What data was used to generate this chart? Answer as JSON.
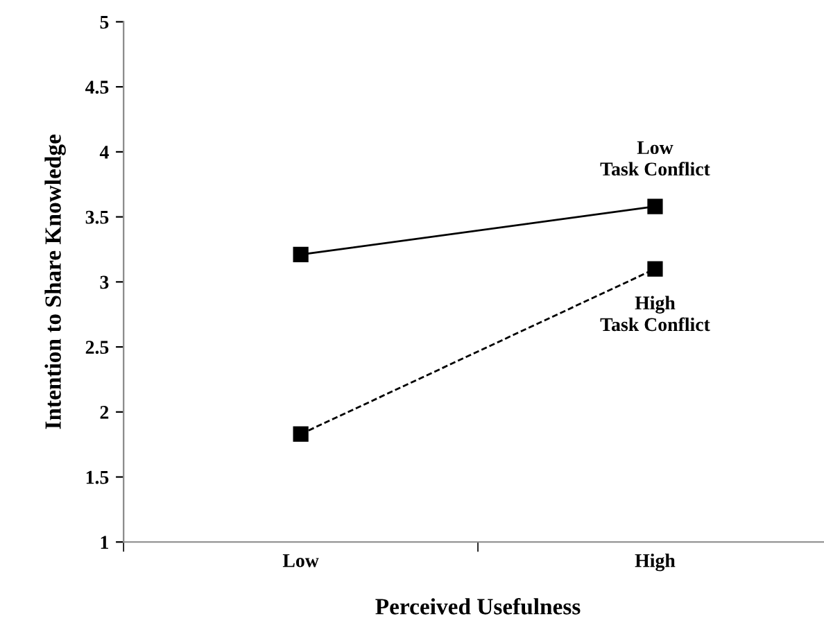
{
  "chart_data": {
    "type": "line",
    "xlabel": "Perceived Usefulness",
    "ylabel": "Intention to Share Knowledge",
    "categories": [
      "Low",
      "High"
    ],
    "series": [
      {
        "name": "Low\nTask Conflict",
        "color": "#000000",
        "values": [
          3.21,
          3.58
        ],
        "line_style": "solid"
      },
      {
        "name": "High\nTask Conflict",
        "color": "#000000",
        "values": [
          1.83,
          3.1
        ],
        "line_style": "dashed"
      }
    ],
    "ylim": [
      1,
      5
    ],
    "yticks": [
      1,
      1.5,
      2,
      2.5,
      3,
      3.5,
      4,
      4.5,
      5
    ],
    "marker": "square",
    "grid": false,
    "legend": false
  }
}
